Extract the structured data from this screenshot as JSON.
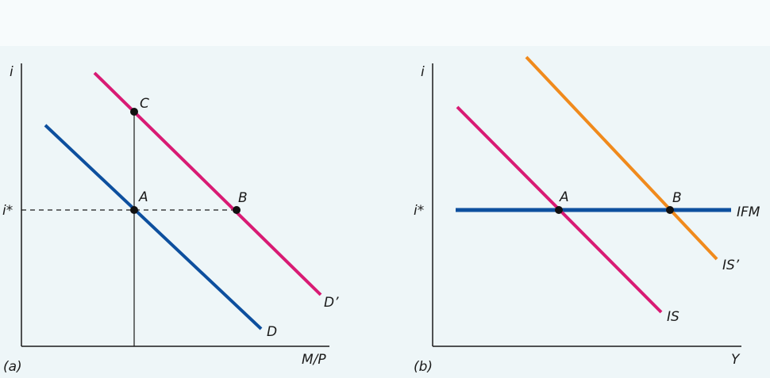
{
  "colors": {
    "background": "#eef6f8",
    "pink": "#d81b74",
    "blue": "#0d4f9e",
    "orange": "#f08a1c",
    "axis": "#1a1a1a"
  },
  "panel_a": {
    "label": "(a)",
    "y_axis_label": "i",
    "x_axis_label": "M/P",
    "rate_label": "i*",
    "curve_d": "D",
    "curve_d_prime": "D’",
    "point_a": "A",
    "point_b": "B",
    "point_c": "C"
  },
  "panel_b": {
    "label": "(b)",
    "y_axis_label": "i",
    "x_axis_label": "Y",
    "rate_label": "i*",
    "curve_ifm": "IFM",
    "curve_is": "IS",
    "curve_is_prime": "IS’",
    "point_a": "A",
    "point_b": "B"
  }
}
